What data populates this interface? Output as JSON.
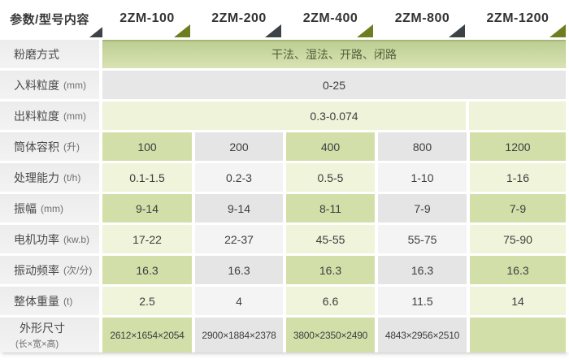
{
  "header": {
    "param_label": "参数/型号内容",
    "models": [
      "2ZM-100",
      "2ZM-200",
      "2ZM-400",
      "2ZM-800",
      "2ZM-1200"
    ]
  },
  "rows": [
    {
      "label": "粉磨方式",
      "unit": "",
      "span": "干法、湿法、开路、闭路"
    },
    {
      "label": "入料粒度",
      "unit": "(mm)",
      "span": "0-25"
    },
    {
      "label": "出料粒度",
      "unit": "(mm)",
      "span": "0.3-0.074"
    },
    {
      "label": "筒体容积",
      "unit": "(升)",
      "values": [
        "100",
        "200",
        "400",
        "800",
        "1200"
      ]
    },
    {
      "label": "处理能力",
      "unit": "(t/h)",
      "values": [
        "0.1-1.5",
        "0.2-3",
        "0.5-5",
        "1-10",
        "1-16"
      ]
    },
    {
      "label": "振幅",
      "unit": "(mm)",
      "values": [
        "9-14",
        "9-14",
        "8-11",
        "7-9",
        "7-9"
      ]
    },
    {
      "label": "电机功率",
      "unit": "(kw.b)",
      "values": [
        "17-22",
        "22-37",
        "45-55",
        "55-75",
        "75-90"
      ]
    },
    {
      "label": "振动频率",
      "unit": "(次/分)",
      "values": [
        "16.3",
        "16.3",
        "16.3",
        "16.3",
        "16.3"
      ]
    },
    {
      "label": "整体重量",
      "unit": "(t)",
      "values": [
        "2.5",
        "4",
        "6.6",
        "11.5",
        "14"
      ]
    },
    {
      "label": "外形尺寸",
      "unit": "(长×宽×高)",
      "values": [
        "2612×1654×2054",
        "2900×1884×2378",
        "3800×2350×2490",
        "4843×2956×2510",
        ""
      ]
    }
  ],
  "colors": {
    "dark_triangle": "#3d4247",
    "green_triangle": "#6f7d21",
    "grind_band_green": "#c7d89c",
    "cell_green_dark": "#d3dfa9",
    "cell_green_light": "#eff4db",
    "cell_gray_dark": "#e5e5e6",
    "cell_gray_light": "#f4f4f5",
    "label_column_bg": "#efefef"
  }
}
